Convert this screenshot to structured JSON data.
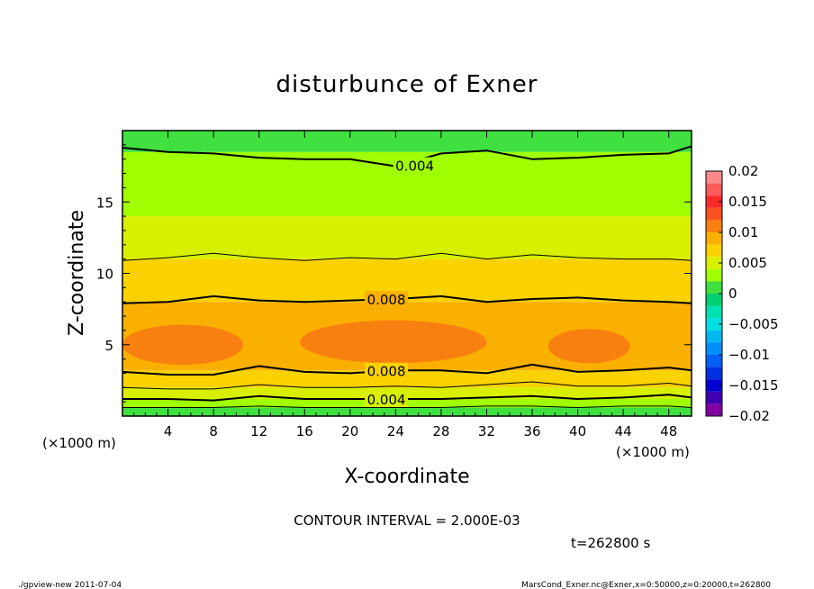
{
  "chart_data": {
    "type": "heatmap",
    "title": "disturbunce of Exner",
    "xlabel": "X-coordinate",
    "ylabel": "Z-coordinate",
    "x_unit_left": "(×1000 m)",
    "x_unit_right": "(×1000 m)",
    "xlim": [
      0,
      50
    ],
    "ylim": [
      0,
      20
    ],
    "x_ticks": [
      4,
      8,
      12,
      16,
      20,
      24,
      28,
      32,
      36,
      40,
      44,
      48
    ],
    "y_ticks": [
      5,
      10,
      15
    ],
    "colorbar": {
      "range": [
        -0.02,
        0.02
      ],
      "tick_values": [
        0.02,
        0.015,
        0.01,
        0.005,
        0,
        -0.005,
        -0.01,
        -0.015,
        -0.02
      ],
      "tick_labels": [
        "0.02",
        "0.015",
        "0.01",
        "0.005",
        "0",
        "−0.005",
        "−0.01",
        "−0.015",
        "−0.02"
      ],
      "levels": [
        {
          "from": 0.018,
          "to": 0.02,
          "color": "#fa8a8a"
        },
        {
          "from": 0.016,
          "to": 0.018,
          "color": "#fa5a5a"
        },
        {
          "from": 0.014,
          "to": 0.016,
          "color": "#fa2a2a"
        },
        {
          "from": 0.012,
          "to": 0.014,
          "color": "#fa5020"
        },
        {
          "from": 0.01,
          "to": 0.012,
          "color": "#f88010"
        },
        {
          "from": 0.008,
          "to": 0.01,
          "color": "#fab000"
        },
        {
          "from": 0.006,
          "to": 0.008,
          "color": "#fad200"
        },
        {
          "from": 0.004,
          "to": 0.006,
          "color": "#d8f000"
        },
        {
          "from": 0.002,
          "to": 0.004,
          "color": "#a0ff00"
        },
        {
          "from": 0.0,
          "to": 0.002,
          "color": "#40e040"
        },
        {
          "from": -0.002,
          "to": 0.0,
          "color": "#00d070"
        },
        {
          "from": -0.004,
          "to": -0.002,
          "color": "#00e0b0"
        },
        {
          "from": -0.006,
          "to": -0.004,
          "color": "#00e0e0"
        },
        {
          "from": -0.008,
          "to": -0.006,
          "color": "#00b8f0"
        },
        {
          "from": -0.01,
          "to": -0.008,
          "color": "#0090f8"
        },
        {
          "from": -0.012,
          "to": -0.01,
          "color": "#0060f8"
        },
        {
          "from": -0.014,
          "to": -0.012,
          "color": "#0030e0"
        },
        {
          "from": -0.016,
          "to": -0.014,
          "color": "#0000d0"
        },
        {
          "from": -0.018,
          "to": -0.016,
          "color": "#4000b0"
        },
        {
          "from": -0.02,
          "to": -0.018,
          "color": "#8000a0"
        }
      ]
    },
    "bands": [
      {
        "z_from": 0.0,
        "z_to": 0.6,
        "value": 0.001
      },
      {
        "z_from": 0.6,
        "z_to": 1.2,
        "value": 0.003
      },
      {
        "z_from": 1.2,
        "z_to": 2.0,
        "value": 0.005
      },
      {
        "z_from": 2.0,
        "z_to": 3.2,
        "value": 0.007
      },
      {
        "z_from": 3.2,
        "z_to": 8.0,
        "value": 0.009
      },
      {
        "z_from": 8.0,
        "z_to": 11.0,
        "value": 0.007
      },
      {
        "z_from": 11.0,
        "z_to": 14.0,
        "value": 0.005
      },
      {
        "z_from": 14.0,
        "z_to": 18.5,
        "value": 0.003
      },
      {
        "z_from": 18.5,
        "z_to": 20.0,
        "value": 0.001
      }
    ],
    "blobs": [
      {
        "x_center": 5.3,
        "z_center": 5.0,
        "x_halfwidth": 5.3,
        "z_halfwidth": 1.4,
        "value": 0.0105
      },
      {
        "x_center": 23.8,
        "z_center": 5.2,
        "x_halfwidth": 8.2,
        "z_halfwidth": 1.5,
        "value": 0.0105
      },
      {
        "x_center": 41.0,
        "z_center": 4.9,
        "x_halfwidth": 3.6,
        "z_halfwidth": 1.2,
        "value": 0.0105
      }
    ],
    "contours": [
      {
        "level": 0.002,
        "thick": false,
        "label": "",
        "x": [
          0,
          4,
          8,
          12,
          16,
          20,
          24,
          28,
          32,
          36,
          40,
          44,
          48,
          50
        ],
        "z": [
          0.6,
          0.6,
          0.6,
          0.7,
          0.6,
          0.6,
          0.6,
          0.6,
          0.7,
          0.7,
          0.6,
          0.7,
          0.7,
          0.6
        ]
      },
      {
        "level": 0.004,
        "thick": true,
        "label": "0.004",
        "x": [
          0,
          4,
          8,
          12,
          16,
          20,
          24,
          28,
          32,
          36,
          40,
          44,
          48,
          50
        ],
        "z": [
          1.2,
          1.2,
          1.1,
          1.4,
          1.2,
          1.2,
          1.2,
          1.2,
          1.3,
          1.4,
          1.2,
          1.3,
          1.5,
          1.3
        ]
      },
      {
        "level": 0.006,
        "thick": false,
        "label": "",
        "x": [
          0,
          4,
          8,
          12,
          16,
          20,
          24,
          28,
          32,
          36,
          40,
          44,
          48,
          50
        ],
        "z": [
          2.0,
          1.9,
          1.9,
          2.2,
          2.0,
          2.0,
          2.1,
          2.0,
          2.2,
          2.4,
          2.1,
          2.1,
          2.3,
          2.1
        ]
      },
      {
        "level": 0.008,
        "thick": true,
        "label": "0.008",
        "x": [
          0,
          4,
          8,
          12,
          16,
          20,
          24,
          28,
          32,
          36,
          40,
          44,
          48,
          50
        ],
        "z": [
          3.1,
          2.9,
          2.9,
          3.5,
          3.1,
          3.0,
          3.2,
          3.2,
          3.0,
          3.6,
          3.1,
          3.2,
          3.4,
          3.2
        ]
      },
      {
        "level": 0.008,
        "thick": true,
        "label": "0.008",
        "x": [
          0,
          4,
          8,
          12,
          16,
          20,
          24,
          28,
          32,
          36,
          40,
          44,
          48,
          50
        ],
        "z": [
          7.9,
          8.0,
          8.4,
          8.1,
          8.0,
          8.1,
          8.2,
          8.4,
          8.0,
          8.2,
          8.3,
          8.1,
          8.0,
          7.9
        ]
      },
      {
        "level": 0.006,
        "thick": false,
        "label": "",
        "x": [
          0,
          4,
          8,
          12,
          16,
          20,
          24,
          28,
          32,
          36,
          40,
          44,
          48,
          50
        ],
        "z": [
          10.9,
          11.1,
          11.4,
          11.1,
          10.9,
          11.1,
          11.0,
          11.4,
          11.0,
          11.3,
          11.1,
          11.0,
          11.0,
          10.9
        ]
      },
      {
        "level": 0.004,
        "thick": true,
        "label": "0.004",
        "x": [
          0,
          4,
          8,
          12,
          16,
          20,
          24,
          28,
          32,
          36,
          40,
          44,
          48,
          50
        ],
        "z": [
          18.8,
          18.5,
          18.4,
          18.1,
          18.0,
          18.0,
          17.5,
          18.4,
          18.6,
          18.0,
          18.1,
          18.3,
          18.4,
          18.9
        ]
      }
    ]
  },
  "footer": {
    "contour_interval": "CONTOUR INTERVAL = 2.000E-03",
    "time": "t=262800  s",
    "left_note": "./gpview-new   2011-07-04",
    "right_note": "MarsCond_Exner.nc@Exner,x=0:50000,z=0:20000,t=262800"
  }
}
